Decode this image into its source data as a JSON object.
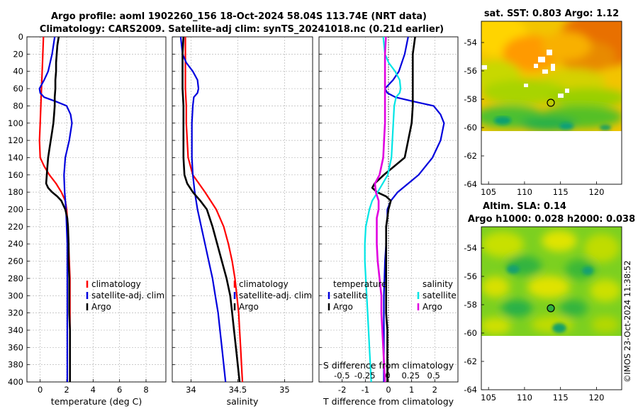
{
  "title_line1": "Argo profile: aoml 1902260_156 18-Oct-2024 58.04S 113.74E (NRT data)",
  "title_line2": "Climatology: CARS2009. Satellite-adj clim: synTS_20241018.nc (0.21d earlier)",
  "watermark": "©IMOS 23-Oct-2024 11:38:52",
  "colors": {
    "argo": "#000000",
    "clim": "#ff0000",
    "sat": "#0000dd",
    "sat_sal": "#00e5e5",
    "argo_sal": "#e000e0"
  },
  "chart_data": [
    {
      "type": "line",
      "name": "temperature-panel",
      "xlabel": "temperature (deg C)",
      "xlim": [
        -1,
        9.5
      ],
      "ylim": [
        400,
        0
      ],
      "xticks": [
        0,
        2,
        4,
        6,
        8
      ],
      "yticks": [
        0,
        20,
        40,
        60,
        80,
        100,
        120,
        140,
        160,
        180,
        200,
        220,
        240,
        260,
        280,
        300,
        320,
        340,
        360,
        380,
        400
      ],
      "legend": [
        "climatology",
        "satellite-adj. clim",
        "Argo"
      ],
      "series": [
        {
          "name": "climatology",
          "color": "#ff0000",
          "depth": [
            0,
            20,
            40,
            60,
            80,
            100,
            120,
            140,
            150,
            160,
            170,
            180,
            190,
            200,
            210,
            220,
            240,
            260,
            280,
            300,
            320,
            340,
            360,
            380,
            400
          ],
          "values": [
            0.25,
            0.2,
            0.15,
            0.1,
            0.05,
            0.0,
            -0.05,
            0.0,
            0.3,
            0.7,
            1.2,
            1.6,
            1.9,
            2.0,
            2.05,
            2.1,
            2.15,
            2.2,
            2.25,
            2.25,
            2.25,
            2.25,
            2.25,
            2.25,
            2.25
          ]
        },
        {
          "name": "satellite-adj. clim",
          "color": "#0000dd",
          "depth": [
            0,
            20,
            40,
            50,
            60,
            65,
            70,
            75,
            80,
            90,
            100,
            120,
            140,
            160,
            180,
            200,
            220,
            240,
            260,
            280,
            300,
            320,
            340,
            360,
            380,
            400
          ],
          "values": [
            1.1,
            0.9,
            0.6,
            0.3,
            -0.05,
            0.0,
            0.3,
            1.2,
            2.0,
            2.3,
            2.4,
            2.2,
            1.9,
            1.8,
            1.85,
            1.95,
            2.0,
            2.05,
            2.05,
            2.05,
            2.05,
            2.05,
            2.05,
            2.05,
            2.05,
            2.05
          ]
        },
        {
          "name": "Argo",
          "color": "#000000",
          "depth": [
            0,
            10,
            20,
            30,
            40,
            50,
            60,
            70,
            80,
            90,
            100,
            110,
            120,
            130,
            140,
            150,
            160,
            170,
            175,
            180,
            185,
            190,
            200,
            210,
            220,
            240,
            260,
            280,
            300,
            320,
            340,
            360,
            380,
            400
          ],
          "values": [
            1.4,
            1.3,
            1.25,
            1.2,
            1.2,
            1.15,
            1.15,
            1.1,
            1.1,
            1.05,
            1.0,
            0.9,
            0.8,
            0.7,
            0.6,
            0.55,
            0.5,
            0.45,
            0.6,
            0.9,
            1.3,
            1.6,
            1.9,
            2.05,
            2.1,
            2.15,
            2.15,
            2.2,
            2.2,
            2.2,
            2.25,
            2.25,
            2.25,
            2.25
          ]
        }
      ]
    },
    {
      "type": "line",
      "name": "salinity-panel",
      "xlabel": "salinity",
      "xlim": [
        33.8,
        35.3
      ],
      "ylim": [
        400,
        0
      ],
      "xticks": [
        34,
        34.5,
        35
      ],
      "legend": [
        "climatology",
        "satellite-adj. clim",
        "Argo"
      ],
      "series": [
        {
          "name": "climatology",
          "color": "#ff0000",
          "depth": [
            0,
            20,
            40,
            60,
            80,
            100,
            120,
            140,
            160,
            180,
            200,
            220,
            240,
            260,
            280,
            300,
            320,
            340,
            360,
            380,
            400
          ],
          "values": [
            33.94,
            33.94,
            33.94,
            33.94,
            33.95,
            33.95,
            33.96,
            33.97,
            34.02,
            34.15,
            34.27,
            34.35,
            34.4,
            34.44,
            34.47,
            34.49,
            34.51,
            34.52,
            34.53,
            34.54,
            34.55
          ]
        },
        {
          "name": "satellite-adj. clim",
          "color": "#0000dd",
          "depth": [
            0,
            20,
            30,
            40,
            50,
            60,
            65,
            70,
            80,
            100,
            120,
            140,
            160,
            180,
            200,
            220,
            240,
            260,
            280,
            300,
            320,
            340,
            360,
            380,
            400
          ],
          "values": [
            33.89,
            33.91,
            33.95,
            34.02,
            34.07,
            34.08,
            34.07,
            34.03,
            34.02,
            34.01,
            34.01,
            34.01,
            34.02,
            34.04,
            34.07,
            34.11,
            34.15,
            34.19,
            34.23,
            34.26,
            34.29,
            34.31,
            34.33,
            34.35,
            34.37
          ]
        },
        {
          "name": "Argo",
          "color": "#000000",
          "depth": [
            0,
            20,
            40,
            60,
            80,
            100,
            120,
            140,
            160,
            170,
            180,
            190,
            200,
            210,
            220,
            240,
            260,
            280,
            300,
            320,
            340,
            360,
            380,
            400
          ],
          "values": [
            33.92,
            33.91,
            33.91,
            33.91,
            33.92,
            33.92,
            33.92,
            33.92,
            33.93,
            33.96,
            34.02,
            34.1,
            34.17,
            34.2,
            34.23,
            34.28,
            34.33,
            34.38,
            34.42,
            34.44,
            34.46,
            34.48,
            34.5,
            34.52
          ]
        }
      ]
    },
    {
      "type": "line",
      "name": "difference-panel",
      "xlabel": "T difference from climatology",
      "xlabel_top": "S difference from climatology",
      "xlim": [
        -3,
        3
      ],
      "ylim": [
        400,
        0
      ],
      "xticks": [
        -2,
        -1,
        0,
        1,
        2
      ],
      "xticks_top": [
        -0.5,
        -0.25,
        0,
        0.25,
        0.5
      ],
      "legend_temperature_title": "temperature",
      "legend_salinity_title": "salinity",
      "legend_temperature": [
        "satellite",
        "Argo"
      ],
      "legend_salinity": [
        "satellite",
        "Argo"
      ],
      "series": [
        {
          "name": "T satellite",
          "color": "#0000dd",
          "depth": [
            0,
            20,
            40,
            50,
            60,
            65,
            70,
            75,
            80,
            90,
            100,
            120,
            140,
            160,
            170,
            180,
            190,
            200,
            210,
            220,
            240,
            260,
            300,
            340,
            380,
            400
          ],
          "values": [
            0.85,
            0.7,
            0.45,
            0.2,
            -0.15,
            -0.05,
            0.3,
            1.1,
            1.95,
            2.25,
            2.4,
            2.25,
            1.9,
            1.3,
            0.85,
            0.4,
            0.1,
            -0.05,
            -0.05,
            -0.1,
            -0.1,
            -0.15,
            -0.2,
            -0.2,
            -0.2,
            -0.2
          ]
        },
        {
          "name": "T Argo",
          "color": "#000000",
          "depth": [
            0,
            20,
            40,
            60,
            80,
            100,
            120,
            140,
            150,
            160,
            170,
            175,
            180,
            185,
            190,
            200,
            210,
            220,
            240,
            260,
            280,
            300,
            320,
            340,
            360,
            380,
            400
          ],
          "values": [
            1.15,
            1.05,
            1.05,
            1.05,
            1.05,
            1.0,
            0.85,
            0.7,
            0.25,
            -0.2,
            -0.6,
            -0.7,
            -0.5,
            -0.1,
            0.1,
            0.0,
            -0.05,
            -0.1,
            -0.1,
            -0.1,
            -0.1,
            -0.1,
            -0.1,
            -0.05,
            -0.05,
            -0.05,
            -0.05
          ]
        },
        {
          "name": "S satellite",
          "color": "#00e5e5",
          "depth": [
            0,
            20,
            30,
            40,
            50,
            60,
            65,
            70,
            80,
            100,
            120,
            140,
            160,
            180,
            190,
            200,
            220,
            240,
            260,
            280,
            300,
            320,
            340,
            360,
            380,
            400
          ],
          "values": [
            -0.05,
            -0.03,
            0.01,
            0.08,
            0.13,
            0.14,
            0.13,
            0.09,
            0.07,
            0.06,
            0.05,
            0.04,
            0.0,
            -0.11,
            -0.17,
            -0.2,
            -0.24,
            -0.25,
            -0.25,
            -0.24,
            -0.23,
            -0.22,
            -0.21,
            -0.2,
            -0.19,
            -0.18
          ]
        },
        {
          "name": "S Argo",
          "color": "#e000e0",
          "depth": [
            0,
            20,
            40,
            60,
            80,
            100,
            120,
            140,
            160,
            170,
            180,
            190,
            200,
            210,
            220,
            240,
            260,
            280,
            300,
            320,
            340,
            360,
            380,
            400
          ],
          "values": [
            -0.02,
            -0.03,
            -0.03,
            -0.03,
            -0.03,
            -0.03,
            -0.04,
            -0.05,
            -0.09,
            -0.14,
            -0.13,
            -0.1,
            -0.1,
            -0.12,
            -0.12,
            -0.12,
            -0.11,
            -0.09,
            -0.07,
            -0.07,
            -0.06,
            -0.05,
            -0.04,
            -0.03
          ]
        }
      ]
    },
    {
      "type": "heatmap",
      "name": "sst-map",
      "title": "sat. SST: 0.803 Argo: 1.12",
      "xlim": [
        104,
        123.5
      ],
      "ylim": [
        -64,
        -52.5
      ],
      "xticks": [
        105,
        110,
        115,
        120
      ],
      "yticks": [
        -54,
        -56,
        -58,
        -60,
        -62,
        -64
      ],
      "argo_position": {
        "lon": 113.74,
        "lat": -58.04
      },
      "data_southern_limit": -60.1
    },
    {
      "type": "heatmap",
      "name": "sla-map",
      "title": "Altim. SLA: 0.14",
      "subtitle": "Argo h1000: 0.028 h2000: 0.038",
      "xlim": [
        104,
        123.5
      ],
      "ylim": [
        -64,
        -52.5
      ],
      "xticks": [
        105,
        110,
        115,
        120
      ],
      "yticks": [
        -54,
        -56,
        -58,
        -60,
        -62,
        -64
      ],
      "argo_position": {
        "lon": 113.74,
        "lat": -58.04
      },
      "data_southern_limit": -60.1
    }
  ]
}
